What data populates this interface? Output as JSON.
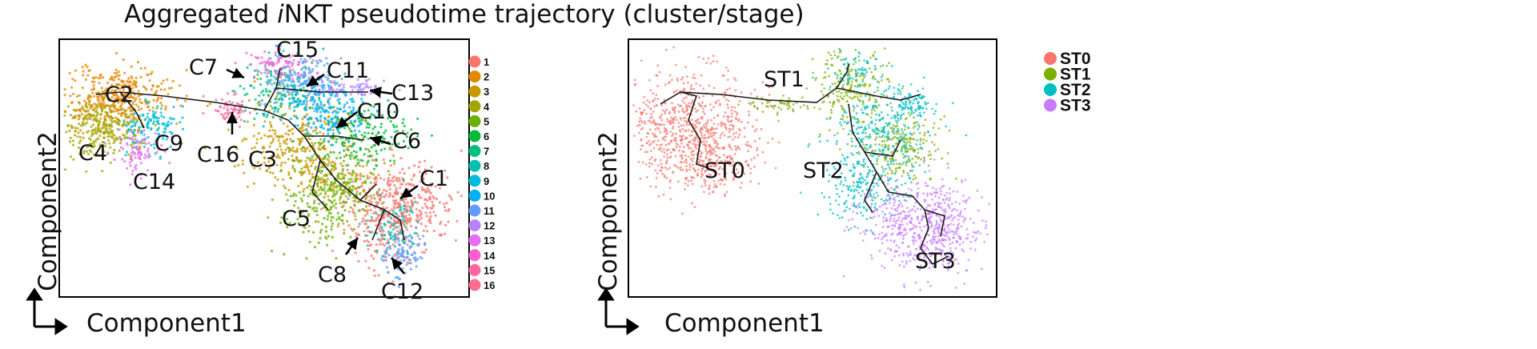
{
  "figure_title": {
    "prefix": "Aggregated ",
    "italic": "i",
    "suffix": "NKT pseudotime trajectory (cluster/stage)"
  },
  "chart_data": [
    {
      "type": "scatter",
      "title": "",
      "xlabel": "Component1",
      "ylabel": "Component2",
      "xlim": [
        0,
        100
      ],
      "ylim": [
        0,
        100
      ],
      "grid": false,
      "legend_position": "right",
      "series": [
        {
          "name": "1",
          "color": "#F8766D"
        },
        {
          "name": "2",
          "color": "#E58700"
        },
        {
          "name": "3",
          "color": "#C99800"
        },
        {
          "name": "4",
          "color": "#A3A500"
        },
        {
          "name": "5",
          "color": "#6BB100"
        },
        {
          "name": "6",
          "color": "#00BA38"
        },
        {
          "name": "7",
          "color": "#00BF7D"
        },
        {
          "name": "8",
          "color": "#00C0AF"
        },
        {
          "name": "9",
          "color": "#00BCD8"
        },
        {
          "name": "10",
          "color": "#00B0F6"
        },
        {
          "name": "11",
          "color": "#619CFF"
        },
        {
          "name": "12",
          "color": "#B983FF"
        },
        {
          "name": "13",
          "color": "#E76BF3"
        },
        {
          "name": "14",
          "color": "#FD61D1"
        },
        {
          "name": "15",
          "color": "#FF67A4"
        },
        {
          "name": "16",
          "color": "#FF6C91"
        }
      ],
      "annotations": [
        {
          "text": "C1",
          "x": 96,
          "y": 51
        },
        {
          "text": "C2",
          "x": 12,
          "y": 83
        },
        {
          "text": "C3",
          "x": 51,
          "y": 56
        },
        {
          "text": "C4",
          "x": 7,
          "y": 57
        },
        {
          "text": "C5",
          "x": 57,
          "y": 28
        },
        {
          "text": "C6",
          "x": 85,
          "y": 61
        },
        {
          "text": "C7",
          "x": 38,
          "y": 91
        },
        {
          "text": "C8",
          "x": 67,
          "y": 9
        },
        {
          "text": "C9",
          "x": 29,
          "y": 60
        },
        {
          "text": "C10",
          "x": 76,
          "y": 72
        },
        {
          "text": "C11",
          "x": 71,
          "y": 90
        },
        {
          "text": "C12",
          "x": 83,
          "y": 2
        },
        {
          "text": "C13",
          "x": 86,
          "y": 82
        },
        {
          "text": "C14",
          "x": 25,
          "y": 46
        },
        {
          "text": "C15",
          "x": 58,
          "y": 99
        },
        {
          "text": "C16",
          "x": 40,
          "y": 50
        }
      ]
    },
    {
      "type": "scatter",
      "title": "",
      "xlabel": "Component1",
      "ylabel": "Component2",
      "xlim": [
        0,
        100
      ],
      "ylim": [
        0,
        100
      ],
      "grid": false,
      "legend_position": "right",
      "series": [
        {
          "name": "ST0",
          "color": "#F8766D"
        },
        {
          "name": "ST1",
          "color": "#7CAE00"
        },
        {
          "name": "ST2",
          "color": "#00BFC4"
        },
        {
          "name": "ST3",
          "color": "#C77CFF"
        }
      ],
      "annotations": [
        {
          "text": "ST0",
          "x": 24,
          "y": 48
        },
        {
          "text": "ST1",
          "x": 42,
          "y": 85
        },
        {
          "text": "ST2",
          "x": 57,
          "y": 48
        },
        {
          "text": "ST3",
          "x": 85,
          "y": 14
        }
      ]
    }
  ]
}
